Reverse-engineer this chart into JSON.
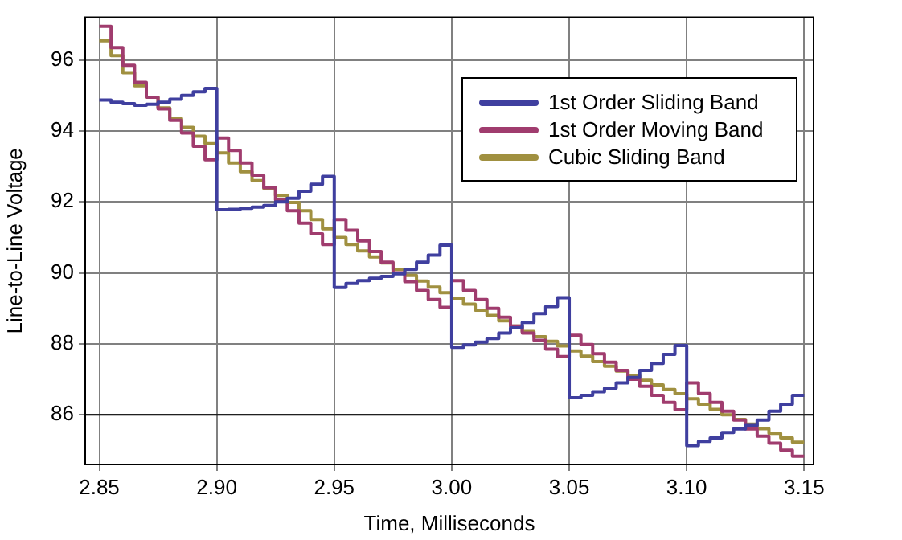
{
  "chart_data": {
    "type": "step",
    "xlabel": "Time, Milliseconds",
    "ylabel": "Line-to-Line Voltage",
    "x": [
      2.85,
      2.855,
      2.86,
      2.865,
      2.87,
      2.875,
      2.88,
      2.885,
      2.89,
      2.895,
      2.9,
      2.905,
      2.91,
      2.915,
      2.92,
      2.925,
      2.93,
      2.935,
      2.94,
      2.945,
      2.95,
      2.955,
      2.96,
      2.965,
      2.97,
      2.975,
      2.98,
      2.985,
      2.99,
      2.995,
      3.0,
      3.005,
      3.01,
      3.015,
      3.02,
      3.025,
      3.03,
      3.035,
      3.04,
      3.045,
      3.05,
      3.055,
      3.06,
      3.065,
      3.07,
      3.075,
      3.08,
      3.085,
      3.09,
      3.095,
      3.1,
      3.105,
      3.11,
      3.115,
      3.12,
      3.125,
      3.13,
      3.135,
      3.14,
      3.145,
      3.15
    ],
    "series": [
      {
        "name": "1st Order Sliding Band",
        "color": "#3f3f9f",
        "values": [
          94.87,
          94.81,
          94.77,
          94.72,
          94.75,
          94.81,
          94.89,
          95.0,
          95.1,
          95.2,
          91.78,
          91.79,
          91.82,
          91.85,
          91.9,
          92.0,
          92.1,
          92.3,
          92.5,
          92.72,
          89.59,
          89.7,
          89.78,
          89.85,
          89.9,
          89.97,
          90.1,
          90.3,
          90.5,
          90.78,
          87.9,
          87.97,
          88.05,
          88.15,
          88.3,
          88.45,
          88.6,
          88.85,
          89.05,
          89.3,
          86.48,
          86.55,
          86.65,
          86.75,
          86.9,
          87.05,
          87.25,
          87.45,
          87.7,
          87.95,
          85.13,
          85.25,
          85.35,
          85.5,
          85.6,
          85.7,
          85.85,
          86.1,
          86.3,
          86.55,
          86.55
        ]
      },
      {
        "name": "1st Order Moving Band",
        "color": "#a03c6e",
        "values": [
          96.95,
          96.35,
          95.85,
          95.37,
          94.95,
          94.62,
          94.3,
          93.94,
          93.57,
          93.19,
          93.8,
          93.45,
          93.1,
          92.75,
          92.4,
          92.05,
          91.75,
          91.4,
          91.1,
          90.8,
          91.5,
          91.2,
          90.9,
          90.6,
          90.3,
          90.0,
          89.75,
          89.5,
          89.25,
          89.03,
          89.78,
          89.5,
          89.25,
          89.0,
          88.75,
          88.5,
          88.3,
          88.1,
          87.85,
          87.64,
          88.24,
          87.98,
          87.72,
          87.48,
          87.25,
          87.0,
          86.8,
          86.55,
          86.35,
          86.14,
          86.9,
          86.6,
          86.35,
          86.1,
          85.85,
          85.6,
          85.4,
          85.2,
          85.0,
          84.83,
          84.83
        ]
      },
      {
        "name": "Cubic Sliding Band",
        "color": "#a09040",
        "values": [
          96.54,
          96.12,
          95.64,
          95.27,
          94.95,
          94.65,
          94.35,
          94.1,
          93.85,
          93.64,
          93.38,
          93.1,
          92.85,
          92.6,
          92.38,
          92.18,
          91.98,
          91.75,
          91.5,
          91.24,
          91.0,
          90.8,
          90.62,
          90.45,
          90.28,
          90.1,
          89.93,
          89.77,
          89.6,
          89.44,
          89.29,
          89.12,
          88.95,
          88.8,
          88.65,
          88.5,
          88.35,
          88.2,
          88.07,
          87.94,
          87.8,
          87.65,
          87.5,
          87.37,
          87.23,
          87.1,
          86.97,
          86.84,
          86.71,
          86.59,
          86.45,
          86.3,
          86.15,
          86.0,
          85.87,
          85.74,
          85.61,
          85.48,
          85.35,
          85.23,
          85.23
        ]
      }
    ],
    "xlim": [
      2.844,
      3.154
    ],
    "ylim": [
      84.6,
      97.2
    ],
    "xticks": [
      {
        "value": 2.85,
        "label": "2.85"
      },
      {
        "value": 2.9,
        "label": "2.90"
      },
      {
        "value": 2.95,
        "label": "2.95"
      },
      {
        "value": 3.0,
        "label": "3.00"
      },
      {
        "value": 3.05,
        "label": "3.05"
      },
      {
        "value": 3.1,
        "label": "3.10"
      },
      {
        "value": 3.15,
        "label": "3.15"
      }
    ],
    "yticks": [
      86,
      88,
      90,
      92,
      94,
      96
    ],
    "ref_lines": [
      {
        "axis": "y",
        "value": 86,
        "color": "#000000"
      }
    ],
    "grid": true,
    "legend": "top right",
    "line_style": "solid",
    "marker": "none"
  }
}
